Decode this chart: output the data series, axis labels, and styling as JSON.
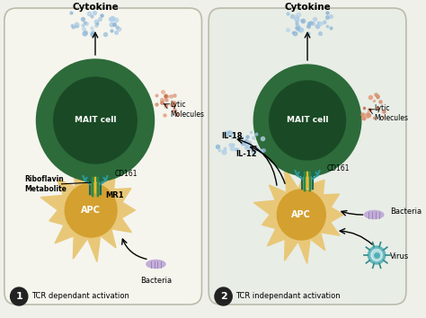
{
  "bg_color": "#f0f0eb",
  "panel1_bg": "#f5f5ee",
  "panel2_bg": "#e8ede6",
  "mait_outer_color": "#2d6b3a",
  "mait_inner_color": "#1a4a25",
  "apc_outer_color": "#e8c878",
  "apc_inner_color": "#d4a030",
  "panel1_title": "Cytokine",
  "panel2_title": "Cytokine",
  "panel1_label": "TCR dependant activation",
  "panel2_label": "TCR independant activation",
  "text_riboflavin": "Riboflavin\nMetabolite",
  "text_mr1": "MR1",
  "text_cd161_1": "CD161",
  "text_cd161_2": "CD161",
  "text_lytic1": "Lytic\nMolecules",
  "text_lytic2": "Lytic\nMolecules",
  "text_bacteria1": "Bacteria",
  "text_bacteria2": "Bacteria",
  "text_virus": "Virus",
  "text_il18": "IL-18",
  "text_il12": "IL-12",
  "text_mait": "MAIT cell",
  "text_apc": "APC",
  "cytokine_color": "#90b8d8",
  "lytic_color": "#d89070",
  "bacteria_color": "#c0a8d8",
  "virus_color": "#50b0b8"
}
